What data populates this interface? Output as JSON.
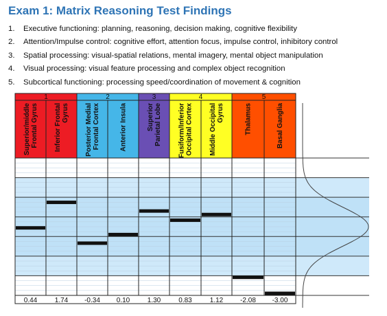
{
  "title": "Exam 1: Matrix Reasoning Test Findings",
  "findings": [
    {
      "num": "1.",
      "text": "Executive functioning: planning, reasoning, decision making, cognitive flexibility"
    },
    {
      "num": "2.",
      "text": "Attention/Impulse control: cognitive effort, attention focus, impulse control, inhibitory control"
    },
    {
      "num": "3.",
      "text": "Spatial processing: visual-spatial relations, mental imagery, mental object manipulation"
    },
    {
      "num": "4.",
      "text": "Visual processing: visual feature processing and complex object recognition"
    },
    {
      "num": "5.",
      "text": "Subcortical functioning: processing speed/coordination of movement & cognition"
    }
  ],
  "chart_data": {
    "type": "bar",
    "groups": [
      {
        "label": "1",
        "color": "#ed1c24",
        "columns": [
          0,
          1
        ]
      },
      {
        "label": "2",
        "color": "#45b6e8",
        "columns": [
          2,
          3
        ]
      },
      {
        "label": "3",
        "color": "#6a4fb4",
        "columns": [
          4
        ]
      },
      {
        "label": "4",
        "color": "#ffff24",
        "columns": [
          5,
          6
        ]
      },
      {
        "label": "5",
        "color": "#ff4f00",
        "columns": [
          7,
          8
        ]
      }
    ],
    "columns": [
      {
        "label_lines": [
          "Superior/middle",
          "Frontal Gyrus"
        ],
        "value": 0.44,
        "value_label": "0.44"
      },
      {
        "label_lines": [
          "Inferior Frontal",
          "Gyrus"
        ],
        "value": 1.74,
        "value_label": "1.74"
      },
      {
        "label_lines": [
          "Posterior Medial",
          "Frontal Cortex"
        ],
        "value": -0.34,
        "value_label": "-0.34"
      },
      {
        "label_lines": [
          "Anterior Insula"
        ],
        "value": 0.1,
        "value_label": "0.10"
      },
      {
        "label_lines": [
          "Superior",
          "Parietal Lobe"
        ],
        "value": 1.3,
        "value_label": "1.30"
      },
      {
        "label_lines": [
          "Fusiform/Inferior",
          "Occipital Cortex"
        ],
        "value": 0.83,
        "value_label": "0.83"
      },
      {
        "label_lines": [
          "Middle Occipital",
          "Gyrus"
        ],
        "value": 1.12,
        "value_label": "1.12"
      },
      {
        "label_lines": [
          "Thalamus"
        ],
        "value": -2.08,
        "value_label": "-2.08"
      },
      {
        "label_lines": [
          "Basal Ganglia"
        ],
        "value": -3.0,
        "value_label": "-3.00"
      }
    ],
    "ylim": [
      -3,
      4
    ],
    "shaded_range": [
      -2,
      3
    ],
    "grid": true,
    "curve": "normal-distribution"
  }
}
